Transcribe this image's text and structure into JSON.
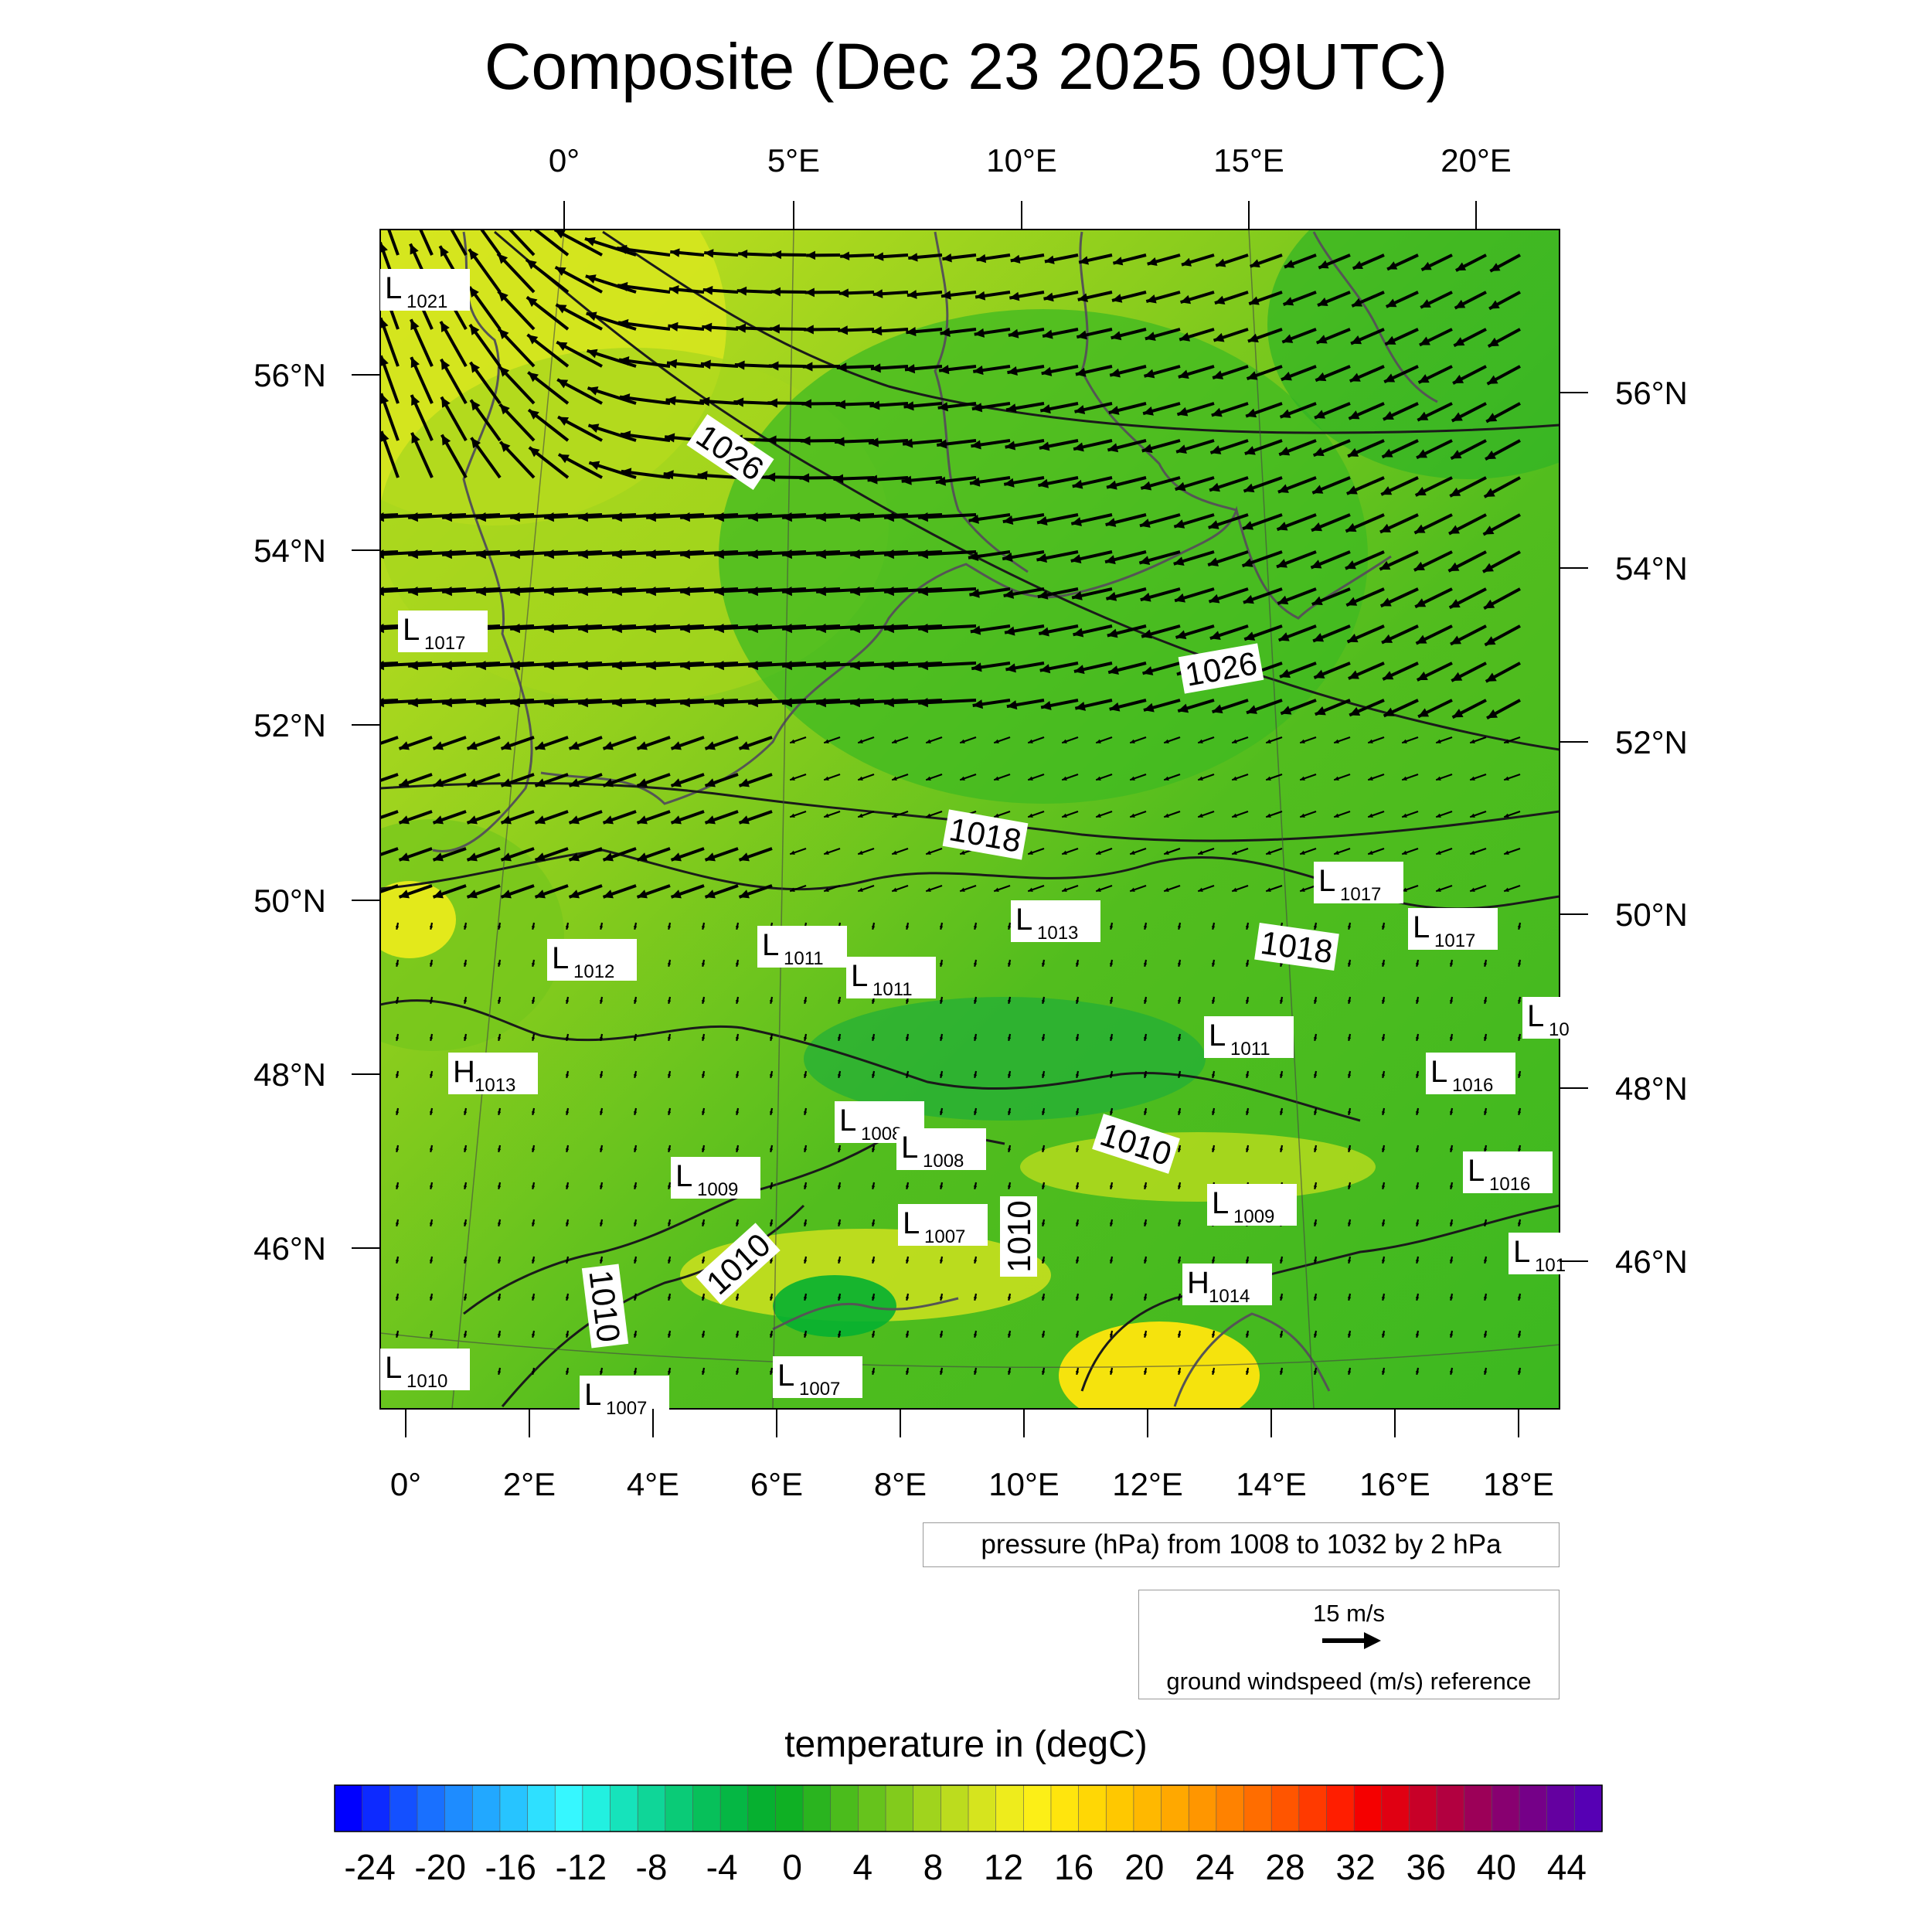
{
  "title": "Composite (Dec 23 2025 09UTC)",
  "map": {
    "top_lon_labels": [
      "0°",
      "5°E",
      "10°E",
      "15°E",
      "20°E"
    ],
    "bottom_lon_labels": [
      "0°",
      "2°E",
      "4°E",
      "6°E",
      "8°E",
      "10°E",
      "12°E",
      "14°E",
      "16°E",
      "18°E"
    ],
    "left_lat_labels": [
      "56°N",
      "54°N",
      "52°N",
      "50°N",
      "48°N",
      "46°N"
    ],
    "right_lat_labels": [
      "56°N",
      "54°N",
      "52°N",
      "50°N",
      "48°N",
      "46°N"
    ],
    "isobar_labels": [
      "1026",
      "1026",
      "1018",
      "1018",
      "1010",
      "1010",
      "1010",
      "1010"
    ],
    "pressure_centers": [
      {
        "type": "L",
        "value": "1021"
      },
      {
        "type": "L",
        "value": "1017"
      },
      {
        "type": "L",
        "value": "1017"
      },
      {
        "type": "L",
        "value": "1017"
      },
      {
        "type": "L",
        "value": "1013"
      },
      {
        "type": "L",
        "value": "1012"
      },
      {
        "type": "L",
        "value": "1011"
      },
      {
        "type": "L",
        "value": "1011"
      },
      {
        "type": "L",
        "value": "1011"
      },
      {
        "type": "H",
        "value": "1013"
      },
      {
        "type": "L",
        "value": "1016"
      },
      {
        "type": "L",
        "value": "1008"
      },
      {
        "type": "L",
        "value": "1008"
      },
      {
        "type": "L",
        "value": "1009"
      },
      {
        "type": "L",
        "value": "1009"
      },
      {
        "type": "L",
        "value": "1016"
      },
      {
        "type": "L",
        "value": "1007"
      },
      {
        "type": "H",
        "value": "1014"
      },
      {
        "type": "L",
        "value": "1010"
      },
      {
        "type": "L",
        "value": "1007"
      },
      {
        "type": "L",
        "value": "1007"
      },
      {
        "type": "L",
        "value": "10"
      },
      {
        "type": "L",
        "value": "101"
      }
    ]
  },
  "pressure_note": "pressure (hPa) from 1008 to 1032 by 2 hPa",
  "wind_reference": {
    "speed": "15 m/s",
    "caption": "ground windspeed (m/s) reference"
  },
  "colorbar": {
    "title": "temperature in (degC)",
    "labels": [
      "-24",
      "-20",
      "-16",
      "-12",
      "-8",
      "-4",
      "0",
      "4",
      "8",
      "12",
      "16",
      "20",
      "24",
      "28",
      "32",
      "36",
      "40",
      "44"
    ],
    "min": -26,
    "max": 46,
    "step": 2,
    "colors": [
      "#0000ff",
      "#0d2aff",
      "#1450ff",
      "#1970ff",
      "#1e8cff",
      "#22a8ff",
      "#27c4ff",
      "#2ee0ff",
      "#36f7ff",
      "#22f0e0",
      "#16e3bb",
      "#0fd698",
      "#0acb77",
      "#07c05a",
      "#05b744",
      "#06b030",
      "#0fb024",
      "#2ab41f",
      "#4bbc1c",
      "#66c31c",
      "#82cb1c",
      "#a0d41d",
      "#bcdc1e",
      "#d6e41e",
      "#eeec1c",
      "#fcef17",
      "#ffe50d",
      "#ffd705",
      "#ffc800",
      "#ffb800",
      "#ffa800",
      "#ff9600",
      "#ff8200",
      "#ff6d00",
      "#ff5500",
      "#ff3a00",
      "#ff1e00",
      "#f50000",
      "#e00012",
      "#c80028",
      "#b20040",
      "#9c0058",
      "#880070",
      "#750088",
      "#6400a0",
      "#5600b4"
    ]
  },
  "colors": {
    "wind_arrow": "#000000",
    "coastline": "#555555",
    "isobar": "#1a1a1a"
  }
}
